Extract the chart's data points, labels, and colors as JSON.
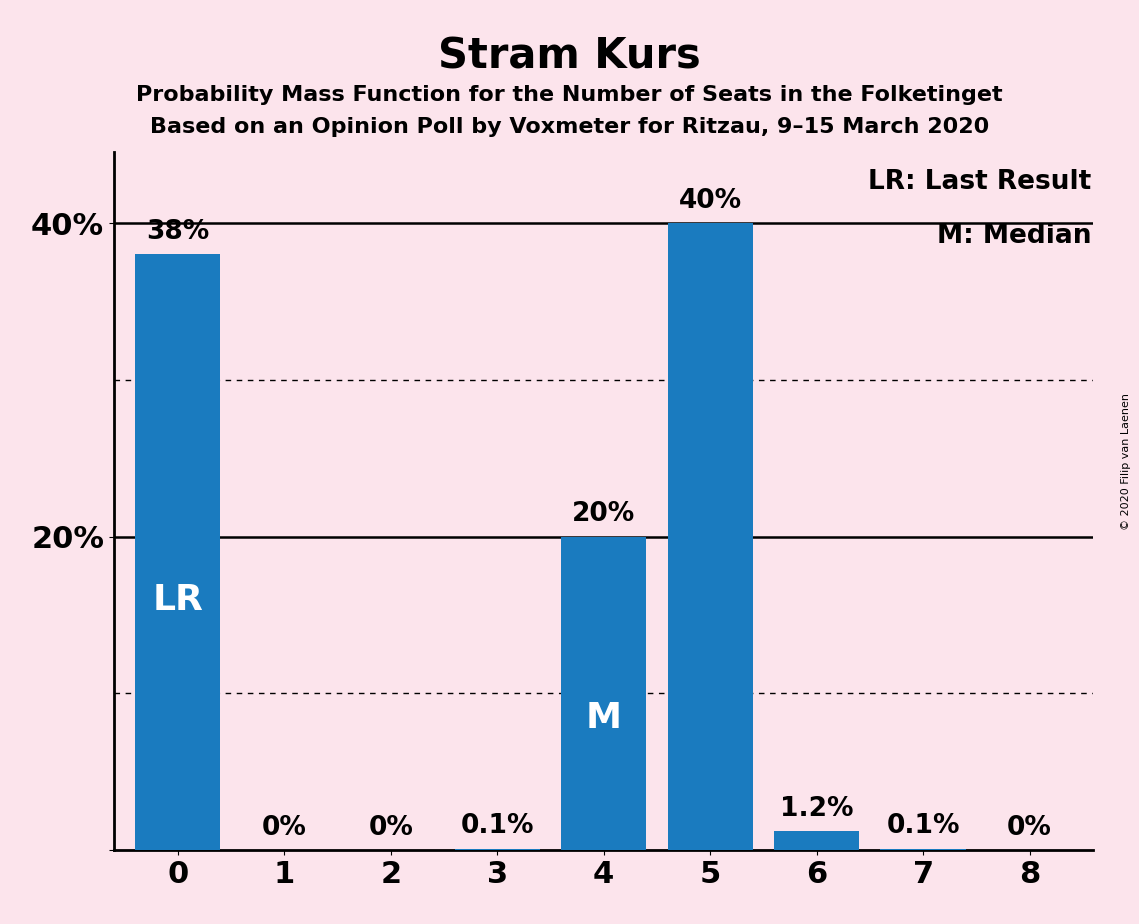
{
  "title": "Stram Kurs",
  "subtitle1": "Probability Mass Function for the Number of Seats in the Folketinget",
  "subtitle2": "Based on an Opinion Poll by Voxmeter for Ritzau, 9–15 March 2020",
  "categories": [
    0,
    1,
    2,
    3,
    4,
    5,
    6,
    7,
    8
  ],
  "values": [
    0.38,
    0.0,
    0.0,
    0.001,
    0.2,
    0.4,
    0.012,
    0.001,
    0.0
  ],
  "bar_color": "#1a7bbf",
  "background_color": "#fce4ec",
  "bar_labels": [
    "38%",
    "0%",
    "0%",
    "0.1%",
    "20%",
    "40%",
    "1.2%",
    "0.1%",
    "0%"
  ],
  "lr_bar": 0,
  "median_bar": 4,
  "lr_label": "LR",
  "median_label": "M",
  "legend_lr": "LR: Last Result",
  "legend_m": "M: Median",
  "ytick_positions": [
    0.0,
    0.2,
    0.4
  ],
  "ytick_labels": [
    "",
    "20%",
    "40%"
  ],
  "solid_hlines": [
    0.2,
    0.4
  ],
  "dotted_hlines": [
    0.1,
    0.3
  ],
  "copyright_text": "© 2020 Filip van Laenen",
  "title_fontsize": 30,
  "subtitle_fontsize": 16,
  "bar_label_fontsize": 19,
  "inside_label_fontsize": 26,
  "legend_fontsize": 19,
  "ytick_fontsize": 22,
  "xtick_fontsize": 22,
  "ylim_max": 0.445
}
